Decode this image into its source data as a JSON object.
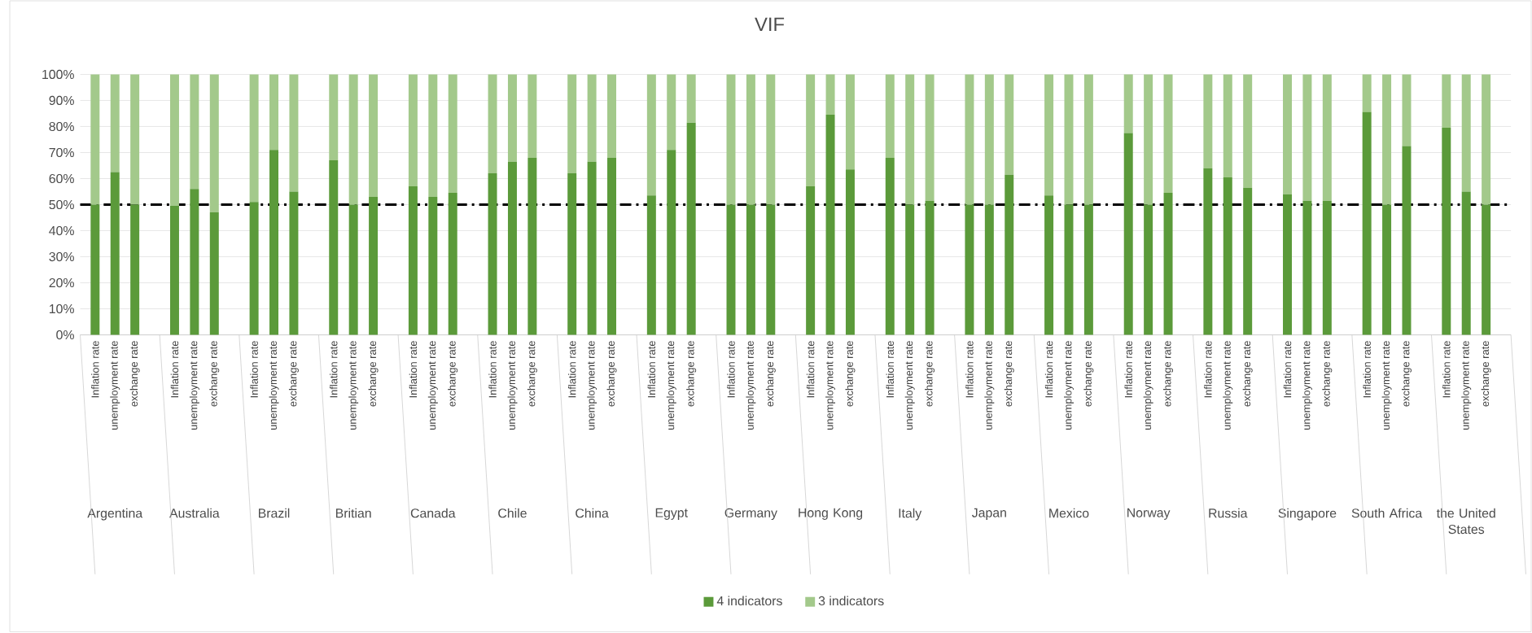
{
  "chart_data": {
    "type": "bar",
    "title": "VIF",
    "stacked": true,
    "grid": "y",
    "legend": "bottom",
    "categories": [
      "Inflation rate",
      "unemployment rate",
      "exchange rate",
      "Inflation rate",
      "unemployment rate",
      "exchange rate",
      "Inflation rate",
      "unemployment rate",
      "exchange rate",
      "Inflation rate",
      "unemployment rate",
      "exchange rate",
      "Inflation rate",
      "unemployment rate",
      "exchange rate",
      "Inflation rate",
      "unemployment rate",
      "exchange rate",
      "Inflation rate",
      "unemployment rate",
      "exchange rate",
      "Inflation rate",
      "unemployment rate",
      "exchange rate",
      "Inflation rate",
      "unemployment rate",
      "exchange rate",
      "Inflation rate",
      "unemployment rate",
      "exchange rate",
      "Inflation rate",
      "unemployment rate",
      "exchange rate",
      "Inflation rate",
      "unemployment rate",
      "exchange rate",
      "Inflation rate",
      "unemployment rate",
      "exchange rate",
      "Inflation rate",
      "unemployment rate",
      "exchange rate",
      "Inflation rate",
      "unemployment rate",
      "exchange rate",
      "Inflation rate",
      "unemployment rate",
      "exchange rate",
      "Inflation rate",
      "unemployment rate",
      "exchange rate",
      "Inflation rate",
      "unemployment rate",
      "exchange rate"
    ],
    "annotations": [
      "Argentina",
      "Australia",
      "Brazil",
      "Britian",
      "Canada",
      "Chile",
      "China",
      "Egypt",
      "Germany",
      "Hong Kong",
      "Italy",
      "Japan",
      "Mexico",
      "Norway",
      "Russia",
      "Singapore",
      "South Africa",
      "the United States"
    ],
    "series": [
      {
        "name": "4 indicators",
        "color": "#5b9a3a",
        "values": [
          50,
          62.5,
          50,
          49.5,
          56,
          47,
          51,
          71,
          55,
          67,
          50,
          53,
          57,
          53,
          54.5,
          62,
          66.5,
          68,
          62,
          66.5,
          68,
          53.5,
          71,
          81.5,
          50,
          50,
          50,
          57,
          84.5,
          63.5,
          68,
          50,
          51.5,
          50,
          50,
          61.5,
          53.5,
          50,
          50,
          77.5,
          50,
          54.5,
          64,
          60.5,
          56.5,
          54,
          51.5,
          51.5,
          85.5,
          50,
          72.5,
          79.5,
          55,
          50
        ]
      },
      {
        "name": "3 indicators",
        "color": "#a3c98b",
        "values": [
          50,
          37.5,
          50,
          50.5,
          44,
          53,
          49,
          29,
          45,
          33,
          50,
          47,
          43,
          47,
          45.5,
          38,
          33.5,
          32,
          38,
          33.5,
          32,
          46.5,
          29,
          18.5,
          50,
          50,
          50,
          43,
          15.5,
          36.5,
          32,
          50,
          48.5,
          50,
          50,
          38.5,
          46.5,
          50,
          50,
          22.5,
          50,
          45.5,
          36,
          39.5,
          43.5,
          46,
          48.5,
          48.5,
          14.5,
          50,
          27.5,
          20.5,
          45,
          50
        ]
      }
    ],
    "ylim": [
      0,
      100
    ],
    "yticks": [
      {
        "value": 0,
        "label": "0%"
      },
      {
        "value": 10,
        "label": "10%"
      },
      {
        "value": 20,
        "label": "20%"
      },
      {
        "value": 30,
        "label": "30%"
      },
      {
        "value": 40,
        "label": "40%"
      },
      {
        "value": 50,
        "label": "50%"
      },
      {
        "value": 60,
        "label": "60%"
      },
      {
        "value": 70,
        "label": "70%"
      },
      {
        "value": 80,
        "label": "80%"
      },
      {
        "value": 90,
        "label": "90%"
      },
      {
        "value": 100,
        "label": "100%"
      }
    ],
    "ref_lines": [
      {
        "axis": "y",
        "value": 50,
        "color": "#000000",
        "line_style": "dashdotted"
      }
    ]
  }
}
